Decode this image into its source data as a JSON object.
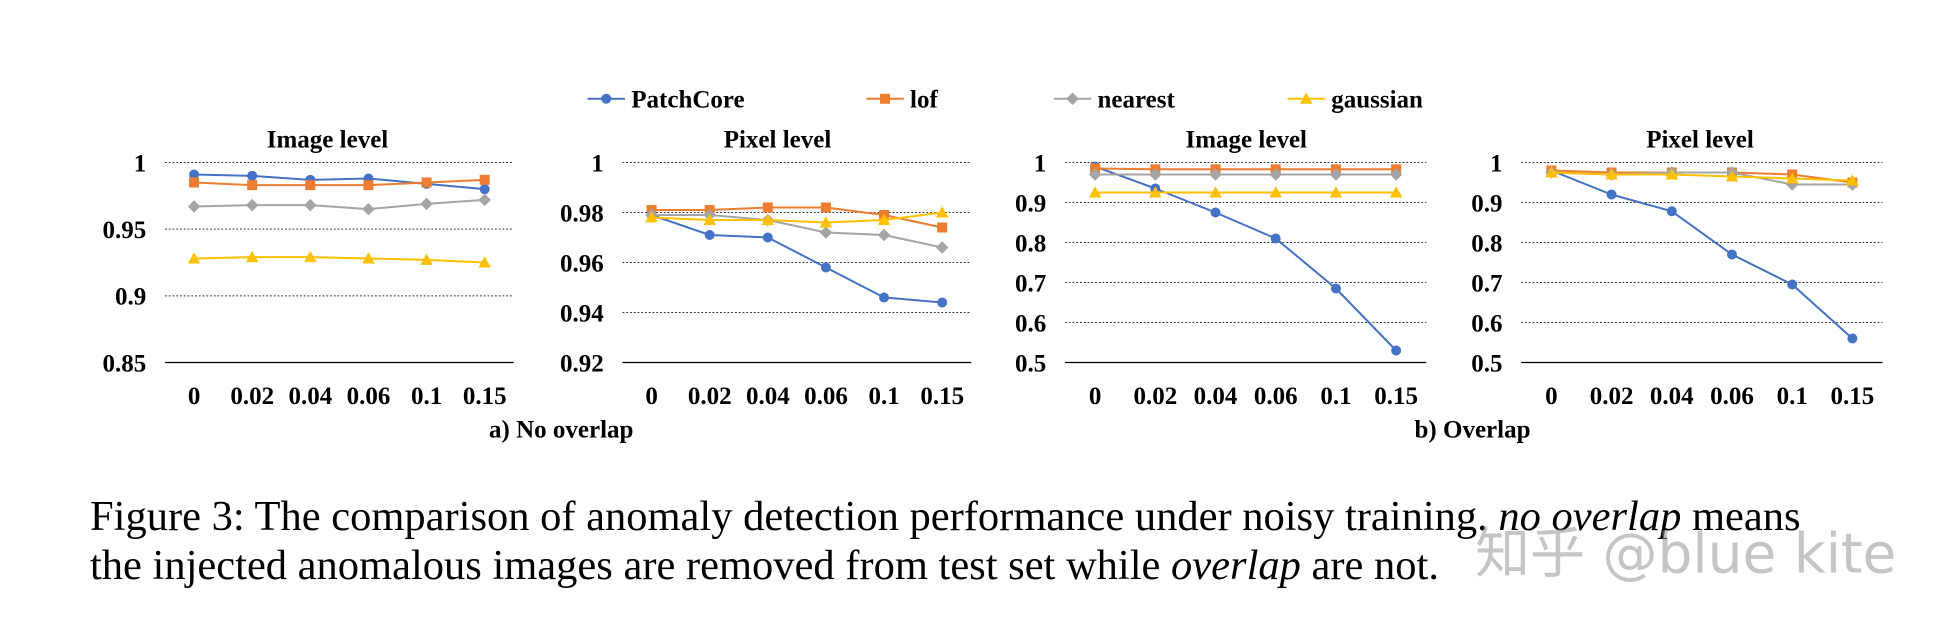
{
  "chart_data": [
    {
      "type": "line",
      "title": "Image level",
      "categories": [
        "0",
        "0.02",
        "0.04",
        "0.06",
        "0.1",
        "0.15"
      ],
      "ylim": [
        0.85,
        1
      ],
      "yticks": [
        0.85,
        0.9,
        0.95,
        1
      ],
      "grid": true,
      "series": [
        {
          "name": "PatchCore",
          "color": "#4472c4",
          "marker": "circle",
          "values": [
            0.991,
            0.99,
            0.987,
            0.988,
            0.984,
            0.98
          ]
        },
        {
          "name": "lof",
          "color": "#ed7d31",
          "marker": "square",
          "values": [
            0.985,
            0.983,
            0.983,
            0.983,
            0.985,
            0.987
          ]
        },
        {
          "name": "nearest",
          "color": "#a5a5a5",
          "marker": "diamond",
          "values": [
            0.967,
            0.968,
            0.968,
            0.965,
            0.969,
            0.972
          ]
        },
        {
          "name": "gaussian",
          "color": "#ffc000",
          "marker": "triangle",
          "values": [
            0.928,
            0.929,
            0.929,
            0.928,
            0.927,
            0.925
          ]
        }
      ]
    },
    {
      "type": "line",
      "title": "Pixel level",
      "categories": [
        "0",
        "0.02",
        "0.04",
        "0.06",
        "0.1",
        "0.15"
      ],
      "ylim": [
        0.92,
        1
      ],
      "yticks": [
        0.92,
        0.94,
        0.96,
        0.98,
        1
      ],
      "grid": true,
      "series": [
        {
          "name": "PatchCore",
          "color": "#4472c4",
          "marker": "circle",
          "values": [
            0.979,
            0.971,
            0.97,
            0.958,
            0.946,
            0.944
          ]
        },
        {
          "name": "lof",
          "color": "#ed7d31",
          "marker": "square",
          "values": [
            0.981,
            0.981,
            0.982,
            0.982,
            0.979,
            0.974
          ]
        },
        {
          "name": "nearest",
          "color": "#a5a5a5",
          "marker": "diamond",
          "values": [
            0.979,
            0.979,
            0.977,
            0.972,
            0.971,
            0.966
          ]
        },
        {
          "name": "gaussian",
          "color": "#ffc000",
          "marker": "triangle",
          "values": [
            0.978,
            0.977,
            0.977,
            0.976,
            0.977,
            0.98
          ]
        }
      ]
    },
    {
      "type": "line",
      "title": "Image level",
      "categories": [
        "0",
        "0.02",
        "0.04",
        "0.06",
        "0.1",
        "0.15"
      ],
      "ylim": [
        0.5,
        1
      ],
      "yticks": [
        0.5,
        0.6,
        0.7,
        0.8,
        0.9,
        1
      ],
      "grid": true,
      "series": [
        {
          "name": "PatchCore",
          "color": "#4472c4",
          "marker": "circle",
          "values": [
            0.99,
            0.935,
            0.875,
            0.81,
            0.685,
            0.53
          ]
        },
        {
          "name": "lof",
          "color": "#ed7d31",
          "marker": "square",
          "values": [
            0.985,
            0.983,
            0.983,
            0.983,
            0.983,
            0.983
          ]
        },
        {
          "name": "nearest",
          "color": "#a5a5a5",
          "marker": "diamond",
          "values": [
            0.97,
            0.97,
            0.97,
            0.97,
            0.97,
            0.97
          ]
        },
        {
          "name": "gaussian",
          "color": "#ffc000",
          "marker": "triangle",
          "values": [
            0.925,
            0.925,
            0.925,
            0.925,
            0.925,
            0.925
          ]
        }
      ]
    },
    {
      "type": "line",
      "title": "Pixel level",
      "categories": [
        "0",
        "0.02",
        "0.04",
        "0.06",
        "0.1",
        "0.15"
      ],
      "ylim": [
        0.5,
        1
      ],
      "yticks": [
        0.5,
        0.6,
        0.7,
        0.8,
        0.9,
        1
      ],
      "grid": true,
      "series": [
        {
          "name": "PatchCore",
          "color": "#4472c4",
          "marker": "circle",
          "values": [
            0.98,
            0.92,
            0.878,
            0.77,
            0.695,
            0.56
          ]
        },
        {
          "name": "lof",
          "color": "#ed7d31",
          "marker": "square",
          "values": [
            0.98,
            0.975,
            0.975,
            0.975,
            0.97,
            0.95
          ]
        },
        {
          "name": "nearest",
          "color": "#a5a5a5",
          "marker": "diamond",
          "values": [
            0.975,
            0.97,
            0.975,
            0.975,
            0.945,
            0.945
          ]
        },
        {
          "name": "gaussian",
          "color": "#ffc000",
          "marker": "triangle",
          "values": [
            0.975,
            0.97,
            0.97,
            0.965,
            0.96,
            0.955
          ]
        }
      ]
    }
  ],
  "subcaptions": [
    "a) No overlap",
    "b) Overlap"
  ],
  "caption": [
    [
      "Figure 3: The comparison of anomaly detection performance under noisy training. ",
      "no overlap",
      " means"
    ],
    [
      "the injected anomalous images are removed from test set while ",
      "overlap",
      " are not."
    ]
  ],
  "watermark": "知乎 @blue kite"
}
